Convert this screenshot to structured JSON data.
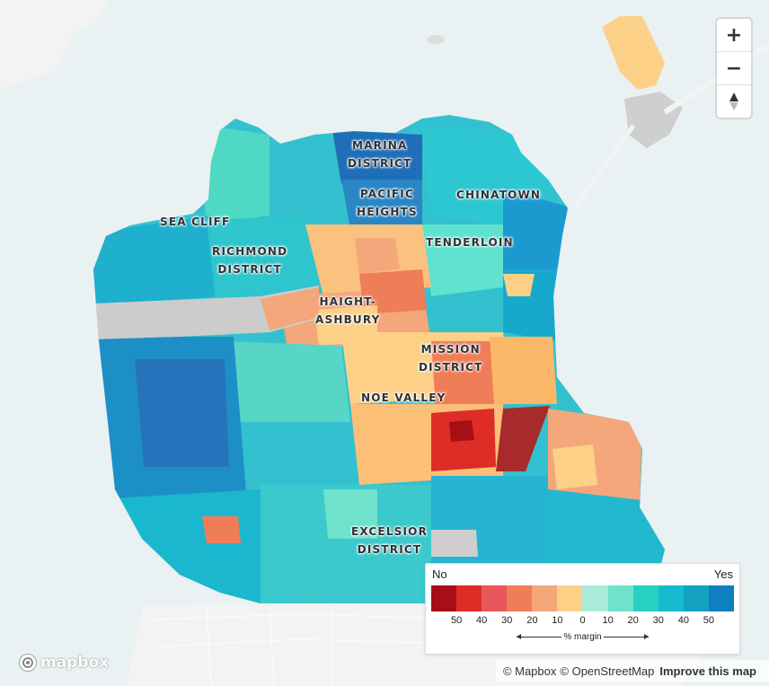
{
  "map": {
    "neighborhood_labels": [
      {
        "id": "marina",
        "lines": [
          "MARINA",
          "DISTRICT"
        ]
      },
      {
        "id": "pacific-heights",
        "lines": [
          "PACIFIC",
          "HEIGHTS"
        ]
      },
      {
        "id": "chinatown",
        "lines": [
          "CHINATOWN"
        ]
      },
      {
        "id": "sea-cliff",
        "lines": [
          "SEA CLIFF"
        ]
      },
      {
        "id": "richmond",
        "lines": [
          "RICHMOND",
          "DISTRICT"
        ]
      },
      {
        "id": "tenderloin",
        "lines": [
          "TENDERLOIN"
        ]
      },
      {
        "id": "haight-ashbury",
        "lines": [
          "HAIGHT-",
          "ASHBURY"
        ]
      },
      {
        "id": "mission",
        "lines": [
          "MISSION",
          "DISTRICT"
        ]
      },
      {
        "id": "noe-valley",
        "lines": [
          "NOE VALLEY"
        ]
      },
      {
        "id": "excelsior",
        "lines": [
          "EXCELSIOR",
          "DISTRICT"
        ]
      }
    ],
    "colors": {
      "water": "#e9f1f2",
      "land_base": "#f1f1f1",
      "park": "#cccccc"
    }
  },
  "controls": {
    "zoom_in": {
      "label": "+",
      "icon": "plus-icon"
    },
    "zoom_out": {
      "label": "−",
      "icon": "minus-icon"
    },
    "compass": {
      "label": "▲",
      "icon": "compass-icon"
    }
  },
  "legend": {
    "left_label": "No",
    "right_label": "Yes",
    "colors": [
      "#a50f15",
      "#de2d26",
      "#e8585a",
      "#ef7d58",
      "#f3a77a",
      "#fdd088",
      "#a9ecdb",
      "#6fe2cc",
      "#28cfc3",
      "#17bbd0",
      "#14a2c0",
      "#0e7fc0"
    ],
    "ticks": [
      "50",
      "40",
      "30",
      "20",
      "10",
      "0",
      "10",
      "20",
      "30",
      "40",
      "50"
    ],
    "axis_label": "% margin"
  },
  "logo": {
    "text": "mapbox",
    "icon": "mapbox-logo-icon"
  },
  "attribution": {
    "mapbox": "© Mapbox",
    "osm": "© OpenStreetMap",
    "improve": "Improve this map"
  }
}
